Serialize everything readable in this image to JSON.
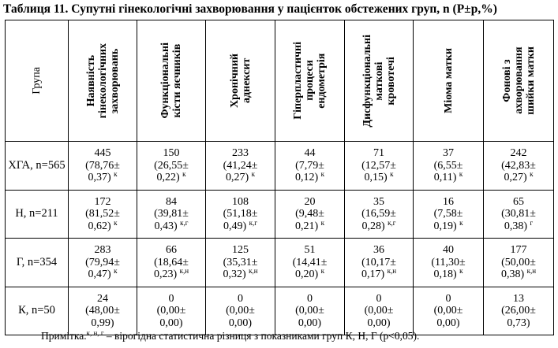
{
  "title": "Таблиця 11. Супутні гінекологічні захворювання у пацієнток обстежених груп, n (P±p,%)",
  "table": {
    "group_header": "Група",
    "columns": [
      {
        "lines": [
          "Наявність",
          "гінекологічних",
          "захворювань"
        ]
      },
      {
        "lines": [
          "Функціональні",
          "кісти яєчників"
        ]
      },
      {
        "lines": [
          "Хронічний",
          "аднексит"
        ]
      },
      {
        "lines": [
          "Гіперпластичні",
          "процеси",
          "ендометрія"
        ]
      },
      {
        "lines": [
          "Дисфункціональні",
          "маткові",
          "кровотечі"
        ]
      },
      {
        "lines": [
          "Міома матки"
        ]
      },
      {
        "lines": [
          "Фонові з",
          "ахворювання",
          "шийки матки"
        ]
      }
    ],
    "rows": [
      {
        "group": "ХГА, n=565",
        "cells": [
          [
            "445",
            "(78,76±",
            "0,37)",
            "к"
          ],
          [
            "150",
            "(26,55±",
            "0,22)",
            "к"
          ],
          [
            "233",
            "(41,24±",
            "0,27)",
            "к"
          ],
          [
            "44",
            "(7,79±",
            "0,12)",
            "к"
          ],
          [
            "71",
            "(12,57±",
            "0,15)",
            "к"
          ],
          [
            "37",
            "(6,55±",
            "0,11)",
            "к"
          ],
          [
            "242",
            "(42,83±",
            "0,27)",
            "к"
          ]
        ]
      },
      {
        "group": "Н, n=211",
        "cells": [
          [
            "172",
            "(81,52±",
            "0,62)",
            "к"
          ],
          [
            "84",
            "(39,81±",
            "0,43)",
            "к,г"
          ],
          [
            "108",
            "(51,18±",
            "0,49)",
            "к,г"
          ],
          [
            "20",
            "(9,48±",
            "0,21)",
            "к"
          ],
          [
            "35",
            "(16,59±",
            "0,28)",
            "к,г"
          ],
          [
            "16",
            "(7,58±",
            "0,19)",
            "к"
          ],
          [
            "65",
            "(30,81±",
            "0,38)",
            "г"
          ]
        ]
      },
      {
        "group": "Г, n=354",
        "cells": [
          [
            "283",
            "(79,94±",
            "0,47)",
            "к"
          ],
          [
            "66",
            "(18,64±",
            "0,23)",
            "к,н"
          ],
          [
            "125",
            "(35,31±",
            "0,32)",
            "к,н"
          ],
          [
            "51",
            "(14,41±",
            "0,20)",
            "к"
          ],
          [
            "36",
            "(10,17±",
            "0,17)",
            "к,н"
          ],
          [
            "40",
            "(11,30±",
            "0,18)",
            "к"
          ],
          [
            "177",
            "(50,00±",
            "0,38)",
            "к,н"
          ]
        ]
      },
      {
        "group": "К, n=50",
        "cells": [
          [
            "24",
            "(48,00±",
            "0,99)",
            ""
          ],
          [
            "0",
            "(0,00±",
            "0,00)",
            ""
          ],
          [
            "0",
            "(0,00±",
            "0,00)",
            ""
          ],
          [
            "0",
            "(0,00±",
            "0,00)",
            ""
          ],
          [
            "0",
            "(0,00±",
            "0,00)",
            ""
          ],
          [
            "0",
            "(0,00±",
            "0,00)",
            ""
          ],
          [
            "13",
            "(26,00±",
            "0,73)",
            ""
          ]
        ]
      }
    ]
  },
  "note": {
    "prefix": "Примітка.",
    "sup": "к, н, г",
    "text": " – вірогідна статистична різниця з показниками груп К, Н, Г (р<0,05)."
  }
}
